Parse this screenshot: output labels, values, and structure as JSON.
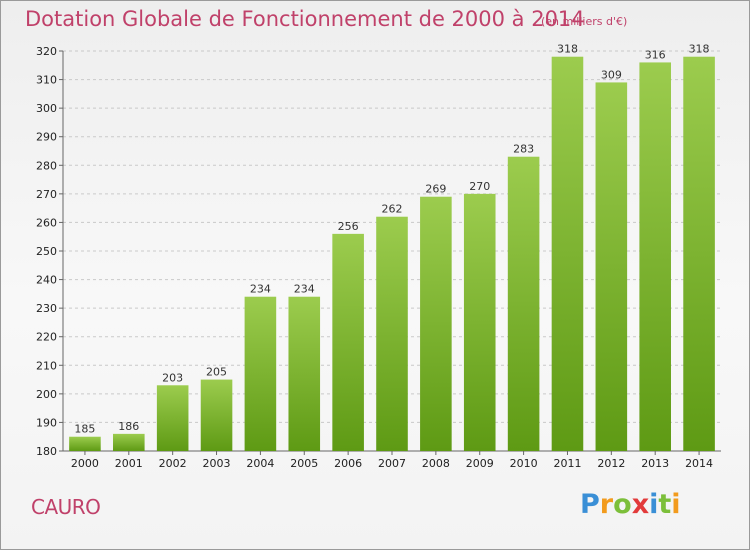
{
  "chart_data": {
    "type": "bar",
    "title": "Dotation Globale de Fonctionnement de 2000 à 2014",
    "unit_label": "(en milliers d'€)",
    "categories": [
      "2000",
      "2001",
      "2002",
      "2003",
      "2004",
      "2005",
      "2006",
      "2007",
      "2008",
      "2009",
      "2010",
      "2011",
      "2012",
      "2013",
      "2014"
    ],
    "values": [
      185,
      186,
      203,
      205,
      234,
      234,
      256,
      262,
      269,
      270,
      283,
      318,
      309,
      316,
      318
    ],
    "ylim": [
      180,
      320
    ],
    "yticks": [
      180,
      190,
      200,
      210,
      220,
      230,
      240,
      250,
      260,
      270,
      280,
      290,
      300,
      310,
      320
    ],
    "grid": true,
    "bar_color_top": "#9ccc4e",
    "bar_color_bottom": "#5e9a14"
  },
  "footer": {
    "place": "CAURO",
    "logo_letters": [
      {
        "ch": "P",
        "color": "#3a8fd6"
      },
      {
        "ch": "r",
        "color": "#f29b1d"
      },
      {
        "ch": "o",
        "color": "#7cbf3a"
      },
      {
        "ch": "x",
        "color": "#e23a3a"
      },
      {
        "ch": "i",
        "color": "#3a8fd6"
      },
      {
        "ch": "t",
        "color": "#7cbf3a"
      },
      {
        "ch": "i",
        "color": "#f29b1d"
      }
    ]
  }
}
